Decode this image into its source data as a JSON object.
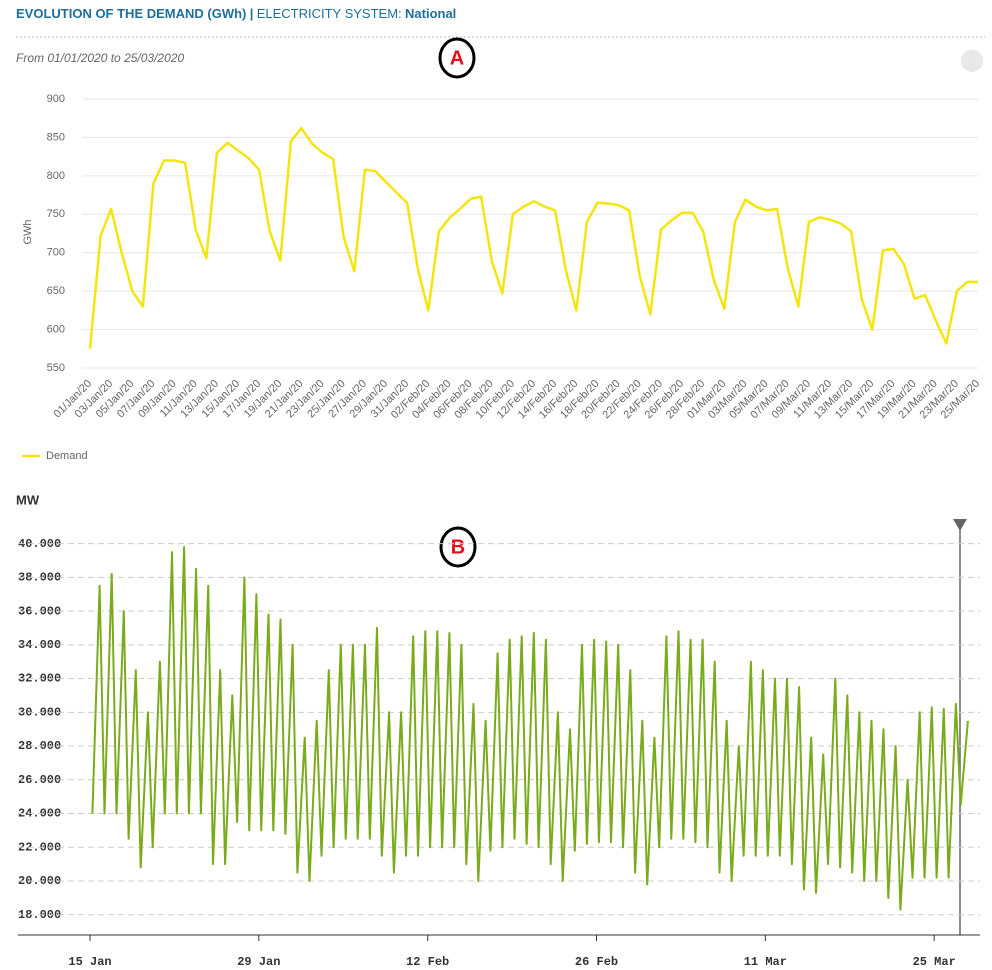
{
  "header": {
    "title": "EVOLUTION OF THE DEMAND (GWh)",
    "separator": "|",
    "system_label": "ELECTRICITY SYSTEM:",
    "system": "National",
    "subtitle": "From 01/01/2020 to 25/03/2020"
  },
  "chart_data": [
    {
      "type": "line",
      "annotation": "A",
      "ylabel": "GWh",
      "categories": [
        "01/Jan/20",
        null,
        "03/Jan/20",
        null,
        "05/Jan/20",
        null,
        "07/Jan/20",
        null,
        "09/Jan/20",
        null,
        "11/Jan/20",
        null,
        "13/Jan/20",
        null,
        "15/Jan/20",
        null,
        "17/Jan/20",
        null,
        "19/Jan/20",
        null,
        "21/Jan/20",
        null,
        "23/Jan/20",
        null,
        "25/Jan/20",
        null,
        "27/Jan/20",
        null,
        "29/Jan/20",
        null,
        "31/Jan/20",
        null,
        "02/Feb/20",
        null,
        "04/Feb/20",
        null,
        "06/Feb/20",
        null,
        "08/Feb/20",
        null,
        "10/Feb/20",
        null,
        "12/Feb/20",
        null,
        "14/Feb/20",
        null,
        "16/Feb/20",
        null,
        "18/Feb/20",
        null,
        "20/Feb/20",
        null,
        "22/Feb/20",
        null,
        "24/Feb/20",
        null,
        "26/Feb/20",
        null,
        "28/Feb/20",
        null,
        "01/Mar/20",
        null,
        "03/Mar/20",
        null,
        "05/Mar/20",
        null,
        "07/Mar/20",
        null,
        "09/Mar/20",
        null,
        "11/Mar/20",
        null,
        "13/Mar/20",
        null,
        "15/Mar/20",
        null,
        "17/Mar/20",
        null,
        "19/Mar/20",
        null,
        "21/Mar/20",
        null,
        "23/Mar/20",
        null,
        "25/Mar/20"
      ],
      "series": [
        {
          "name": "Demand",
          "color": "#f5e50f",
          "values": [
            575,
            722,
            757,
            700,
            650,
            630,
            790,
            820,
            820,
            817,
            730,
            693,
            830,
            843,
            833,
            823,
            808,
            728,
            690,
            845,
            862,
            842,
            830,
            822,
            720,
            676,
            808,
            806,
            792,
            778,
            765,
            680,
            625,
            728,
            745,
            757,
            770,
            773,
            690,
            647,
            750,
            760,
            767,
            760,
            755,
            678,
            625,
            740,
            765,
            764,
            762,
            755,
            670,
            620,
            730,
            742,
            752,
            752,
            728,
            665,
            627,
            740,
            769,
            760,
            755,
            757,
            680,
            630,
            740,
            746,
            743,
            738,
            728,
            640,
            600,
            703,
            705,
            685,
            640,
            645,
            612,
            582,
            650,
            662,
            662
          ]
        }
      ],
      "ylim": [
        550,
        900
      ],
      "yticks": [
        550,
        600,
        650,
        700,
        750,
        800,
        850,
        900
      ],
      "grid": true
    },
    {
      "type": "line",
      "annotation": "B",
      "ylabel": "MW",
      "color": "#7aab1c",
      "x": [
        0.2,
        0.8,
        1.2,
        1.8,
        2.2,
        2.8,
        3.2,
        3.8,
        4.2,
        4.8,
        5.2,
        5.8,
        6.2,
        6.8,
        7.2,
        7.8,
        8.2,
        8.8,
        9.2,
        9.8,
        10.2,
        10.8,
        11.2,
        11.8,
        12.2,
        12.8,
        13.2,
        13.8,
        14.2,
        14.8,
        15.2,
        15.8,
        16.2,
        16.8,
        17.2,
        17.8,
        18.2,
        18.8,
        19.2,
        19.8,
        20.2,
        20.8,
        21.2,
        21.8,
        22.2,
        22.8,
        23.2,
        23.8,
        24.2,
        24.8,
        25.2,
        25.8,
        26.2,
        26.8,
        27.2,
        27.8,
        28.2,
        28.8,
        29.2,
        29.8,
        30.2,
        30.8,
        31.2,
        31.8,
        32.2,
        32.8,
        33.2,
        33.8,
        34.2,
        34.8,
        35.2,
        35.8,
        36.2,
        36.8,
        37.2,
        37.8,
        38.2,
        38.8,
        39.2,
        39.8,
        40.2,
        40.8,
        41.2,
        41.8,
        42.2,
        42.8,
        43.2,
        43.8,
        44.2,
        44.8,
        45.2,
        45.8,
        46.2,
        46.8,
        47.2,
        47.8,
        48.2,
        48.8,
        49.2,
        49.8,
        50.2,
        50.8,
        51.2,
        51.8,
        52.2,
        52.8,
        53.2,
        53.8,
        54.2,
        54.8,
        55.2,
        55.8,
        56.2,
        56.8,
        57.2,
        57.8,
        58.2,
        58.8,
        59.2,
        59.8,
        60.2,
        60.8,
        61.2,
        61.8,
        62.2,
        62.8,
        63.2,
        63.8,
        64.2,
        64.8,
        65.2,
        65.8,
        66.2,
        66.8,
        67.2,
        67.8,
        68.2,
        68.8,
        69.2,
        69.8,
        70.2,
        70.8,
        71.2,
        71.8,
        72.2,
        72.8
      ],
      "values": [
        24000,
        37500,
        24000,
        38200,
        24000,
        36000,
        22500,
        32500,
        20800,
        30000,
        22000,
        33000,
        24000,
        39500,
        24000,
        39800,
        24000,
        38500,
        24000,
        37500,
        21000,
        32500,
        21000,
        31000,
        23500,
        38000,
        23000,
        37000,
        23000,
        35800,
        23000,
        35500,
        22800,
        34000,
        20500,
        28500,
        20000,
        29500,
        21500,
        32500,
        22000,
        34000,
        22500,
        34000,
        22500,
        34000,
        22500,
        35000,
        21500,
        30000,
        20500,
        30000,
        21500,
        34500,
        21500,
        34800,
        22000,
        34800,
        22000,
        34700,
        22000,
        34000,
        21000,
        30500,
        20000,
        29500,
        21800,
        33500,
        22000,
        34300,
        22500,
        34500,
        22200,
        34700,
        22000,
        34300,
        21000,
        30000,
        20000,
        29000,
        21800,
        34000,
        22200,
        34300,
        22300,
        34200,
        22300,
        34000,
        22000,
        32500,
        20500,
        29500,
        19800,
        28500,
        22000,
        34500,
        22500,
        34800,
        22500,
        34300,
        22300,
        34300,
        22000,
        33000,
        20500,
        29500,
        20000,
        28000,
        21500,
        33000,
        21500,
        32500,
        21500,
        32000,
        21500,
        32000,
        21000,
        31500,
        19500,
        28500,
        19300,
        27500,
        21000,
        32000,
        20800,
        31000,
        20500,
        30000,
        20000,
        29500,
        20000,
        29000,
        19000,
        28000,
        18300,
        26000,
        20200,
        30000,
        20200,
        30300,
        20200,
        30200,
        20200,
        30500,
        24500,
        29500
      ],
      "xlim": [
        0,
        73.8
      ],
      "xticks": [
        {
          "value": 0,
          "label": "15 Jan"
        },
        {
          "value": 14,
          "label": "29 Jan"
        },
        {
          "value": 28,
          "label": "12 Feb"
        },
        {
          "value": 42,
          "label": "26 Feb"
        },
        {
          "value": 56,
          "label": "11 Mar"
        },
        {
          "value": 70,
          "label": "25 Mar"
        }
      ],
      "ylim": [
        16800,
        41400
      ],
      "yticks": [
        {
          "value": 18000,
          "label": "18.000"
        },
        {
          "value": 20000,
          "label": "20.000"
        },
        {
          "value": 22000,
          "label": "22.000"
        },
        {
          "value": 24000,
          "label": "24.000"
        },
        {
          "value": 26000,
          "label": "26.000"
        },
        {
          "value": 28000,
          "label": "28.000"
        },
        {
          "value": 30000,
          "label": "30.000"
        },
        {
          "value": 32000,
          "label": "32.000"
        },
        {
          "value": 34000,
          "label": "34.000"
        },
        {
          "value": 36000,
          "label": "36.000"
        },
        {
          "value": 38000,
          "label": "38.000"
        },
        {
          "value": 40000,
          "label": "40.000"
        }
      ],
      "grid": true
    }
  ]
}
